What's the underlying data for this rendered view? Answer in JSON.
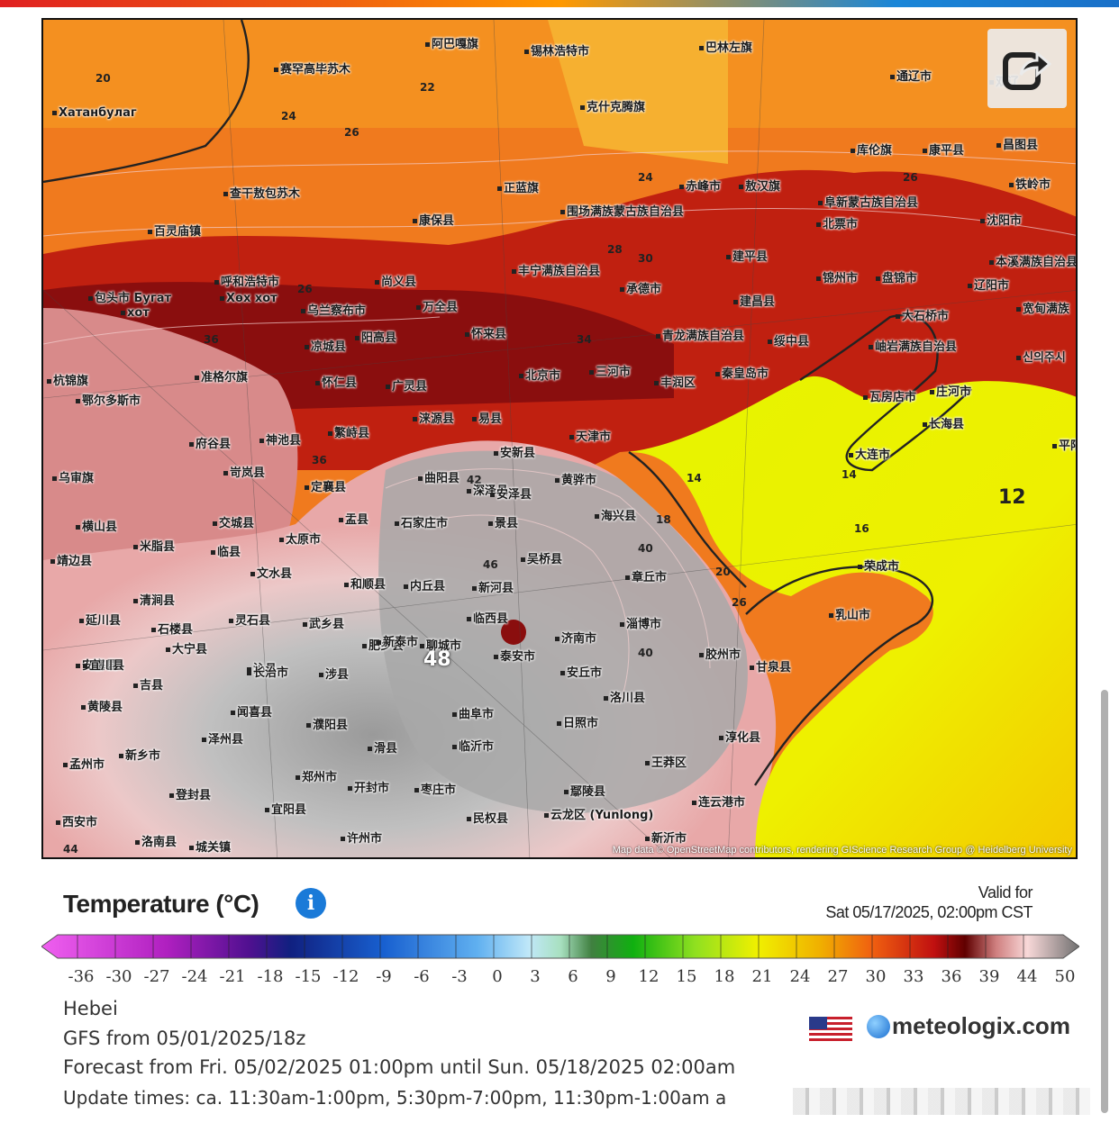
{
  "colors": {
    "sea_cool": "#e8f000",
    "hot_red": "#8a0e0e",
    "orange": "#f07018",
    "heat_pink": "#f0c0c0",
    "heat_grey": "#a8a8a8",
    "brand_blue": "#1a7ad8"
  },
  "map": {
    "credit": "Map data © OpenStreetMap contributors, rendering GIScience Research Group @ Heidelberg University",
    "places": [
      {
        "name": "阿巴嘎旗"
      },
      {
        "name": "锡林浩特市"
      },
      {
        "name": "巴林左旗"
      },
      {
        "name": "通辽市"
      },
      {
        "name": "赛罕高毕苏木"
      },
      {
        "name": "克什克腾旗"
      },
      {
        "name": "库伦旗"
      },
      {
        "name": "康平县"
      },
      {
        "name": "昌图县"
      },
      {
        "name": "Хатанбулаг"
      },
      {
        "name": "查干敖包苏木"
      },
      {
        "name": "正蓝旗"
      },
      {
        "name": "赤峰市"
      },
      {
        "name": "敖汉旗"
      },
      {
        "name": "阜新蒙古族自治县"
      },
      {
        "name": "铁岭市"
      },
      {
        "name": "百灵庙镇"
      },
      {
        "name": "康保县"
      },
      {
        "name": "围场满族蒙古族自治县"
      },
      {
        "name": "北票市"
      },
      {
        "name": "沈阳市"
      },
      {
        "name": "丰宁满族自治县"
      },
      {
        "name": "建平县"
      },
      {
        "name": "本溪满族自治县"
      },
      {
        "name": "呼和浩特市"
      },
      {
        "name": "尚义县"
      },
      {
        "name": "承德市"
      },
      {
        "name": "锦州市"
      },
      {
        "name": "盘锦市"
      },
      {
        "name": "辽阳市"
      },
      {
        "name": "包头市 Бугат"
      },
      {
        "name": "Хөх хот"
      },
      {
        "name": "хот"
      },
      {
        "name": "乌兰察布市"
      },
      {
        "name": "万全县"
      },
      {
        "name": "建昌县"
      },
      {
        "name": "大石桥市"
      },
      {
        "name": "凉城县"
      },
      {
        "name": "阳高县"
      },
      {
        "name": "怀来县"
      },
      {
        "name": "青龙满族自治县"
      },
      {
        "name": "绥中县"
      },
      {
        "name": "岫岩满族自治县"
      },
      {
        "name": "杭锦旗"
      },
      {
        "name": "准格尔旗"
      },
      {
        "name": "怀仁县"
      },
      {
        "name": "广灵县"
      },
      {
        "name": "北京市"
      },
      {
        "name": "三河市"
      },
      {
        "name": "丰润区"
      },
      {
        "name": "秦皇岛市"
      },
      {
        "name": "鄂尔多斯市"
      },
      {
        "name": "涞源县"
      },
      {
        "name": "易县"
      },
      {
        "name": "瓦房店市"
      },
      {
        "name": "庄河市"
      },
      {
        "name": "府谷县"
      },
      {
        "name": "神池县"
      },
      {
        "name": "繁峙县"
      },
      {
        "name": "天津市"
      },
      {
        "name": "长海县"
      },
      {
        "name": "安新县"
      },
      {
        "name": "大连市"
      },
      {
        "name": "乌审旗"
      },
      {
        "name": "岢岚县"
      },
      {
        "name": "定襄县"
      },
      {
        "name": "曲阳县"
      },
      {
        "name": "黄骅市"
      },
      {
        "name": "海兴县"
      },
      {
        "name": "石家庄市"
      },
      {
        "name": "景县"
      },
      {
        "name": "横山县"
      },
      {
        "name": "交城县"
      },
      {
        "name": "盂县"
      },
      {
        "name": "深泽县"
      },
      {
        "name": "米脂县"
      },
      {
        "name": "太原市"
      },
      {
        "name": "临县"
      },
      {
        "name": "安泽县"
      },
      {
        "name": "吴桥县"
      },
      {
        "name": "靖边县"
      },
      {
        "name": "文水县"
      },
      {
        "name": "和顺县"
      },
      {
        "name": "内丘县"
      },
      {
        "name": "新河县"
      },
      {
        "name": "章丘市"
      },
      {
        "name": "荣成市"
      },
      {
        "name": "乳山市"
      },
      {
        "name": "延川县"
      },
      {
        "name": "灵石县"
      },
      {
        "name": "武乡县"
      },
      {
        "name": "临西县"
      },
      {
        "name": "济南市"
      },
      {
        "name": "淄博市"
      },
      {
        "name": "清涧县"
      },
      {
        "name": "石楼县"
      },
      {
        "name": "安塞县"
      },
      {
        "name": "大宁县"
      },
      {
        "name": "沁县"
      },
      {
        "name": "肥乡县"
      },
      {
        "name": "聊城市"
      },
      {
        "name": "泰安市"
      },
      {
        "name": "安丘市"
      },
      {
        "name": "胶州市"
      },
      {
        "name": "甘泉县"
      },
      {
        "name": "宜川县"
      },
      {
        "name": "吉县"
      },
      {
        "name": "长治市"
      },
      {
        "name": "涉县"
      },
      {
        "name": "新泰市"
      },
      {
        "name": "洛川县"
      },
      {
        "name": "黄陵县"
      },
      {
        "name": "闻喜县"
      },
      {
        "name": "泽州县"
      },
      {
        "name": "濮阳县"
      },
      {
        "name": "曲阜市"
      },
      {
        "name": "日照市"
      },
      {
        "name": "淳化县"
      },
      {
        "name": "新乡市"
      },
      {
        "name": "滑县"
      },
      {
        "name": "临沂市"
      },
      {
        "name": "王莽区"
      },
      {
        "name": "孟州市"
      },
      {
        "name": "郑州市"
      },
      {
        "name": "开封市"
      },
      {
        "name": "枣庄市"
      },
      {
        "name": "鄢陵县"
      },
      {
        "name": "登封县"
      },
      {
        "name": "宜阳县"
      },
      {
        "name": "民权县"
      },
      {
        "name": "连云港市"
      },
      {
        "name": "西安市"
      },
      {
        "name": "许州市"
      },
      {
        "name": "云龙区 (Yunlong)"
      },
      {
        "name": "新沂市"
      },
      {
        "name": "洛南县"
      },
      {
        "name": "城关镇"
      },
      {
        "name": "平阳"
      },
      {
        "name": "신의주시"
      },
      {
        "name": "双辽"
      },
      {
        "name": "宽甸满族"
      }
    ],
    "contours": [
      "20",
      "22",
      "24",
      "26",
      "24",
      "26",
      "28",
      "30",
      "26",
      "28",
      "36",
      "34",
      "36",
      "42",
      "46",
      "40",
      "18",
      "14",
      "16",
      "12",
      "20",
      "26",
      "36",
      "40",
      "44",
      "48"
    ]
  },
  "legend": {
    "title": "Temperature (°C)",
    "valid_label": "Valid for",
    "valid_time": "Sat 05/17/2025, 02:00pm CST",
    "ticks": [
      "-36",
      "-30",
      "-27",
      "-24",
      "-21",
      "-18",
      "-15",
      "-12",
      "-9",
      "-6",
      "-3",
      "0",
      "3",
      "6",
      "9",
      "12",
      "15",
      "18",
      "21",
      "24",
      "27",
      "30",
      "33",
      "36",
      "39",
      "44",
      "50"
    ]
  },
  "info": {
    "region": "Hebei",
    "model": "GFS from 05/01/2025/18z",
    "forecast": "Forecast from Fri. 05/02/2025 01:00pm until Sun. 05/18/2025 02:00am",
    "update": "Update times: ca. 11:30am-1:00pm, 5:30pm-7:00pm, 11:30pm-1:00am a"
  },
  "brand": {
    "name": "meteologix.com"
  },
  "icons": {
    "share": "share-icon",
    "info": "info-icon",
    "flag": "us-flag-icon",
    "logo": "meteologix-globe-icon"
  }
}
